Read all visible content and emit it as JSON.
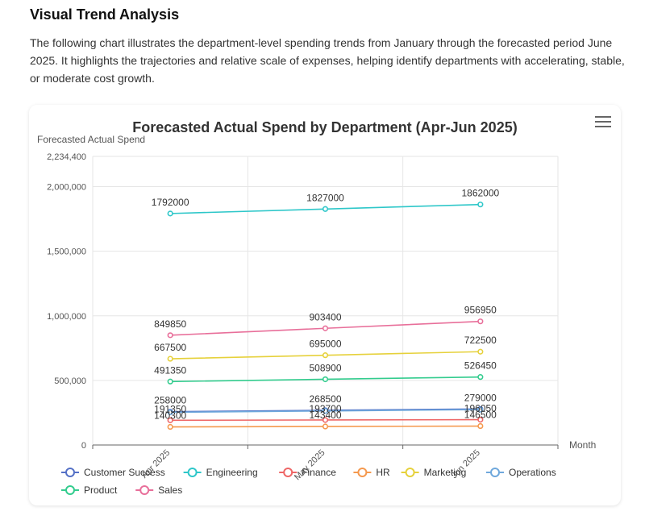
{
  "section": {
    "title": "Visual Trend Analysis",
    "description": "The following chart illustrates the department-level spending trends from January through the forecasted period June 2025. It highlights the trajectories and relative scale of expenses, helping identify departments with accelerating, stable, or moderate cost growth."
  },
  "chart_data": {
    "type": "line",
    "title": "Forecasted Actual Spend by Department (Apr-Jun 2025)",
    "xlabel": "Month",
    "ylabel": "Forecasted Actual Spend",
    "categories": [
      "Apr 2025",
      "May 2025",
      "Jun 2025"
    ],
    "ylim": [
      0,
      2234400
    ],
    "yticks": [
      0,
      500000,
      1000000,
      1500000,
      2000000,
      2234400
    ],
    "ytick_labels": [
      "0",
      "500,000",
      "1,000,000",
      "1,500,000",
      "2,000,000",
      "2,234,400"
    ],
    "grid": true,
    "legend_position": "bottom",
    "series": [
      {
        "name": "Customer Success",
        "color": "#5470c6",
        "values": [
          258000,
          268500,
          279000
        ],
        "labels": [
          "258000",
          "268500",
          "279000"
        ]
      },
      {
        "name": "Engineering",
        "color": "#2ec7c9",
        "values": [
          1792000,
          1827000,
          1862000
        ],
        "labels": [
          "1792000",
          "1827000",
          "1862000"
        ]
      },
      {
        "name": "Finance",
        "color": "#ee6666",
        "values": [
          191350,
          193700,
          196050
        ],
        "labels": [
          "191350",
          "193700",
          "196050"
        ]
      },
      {
        "name": "HR",
        "color": "#f5994e",
        "values": [
          140300,
          143400,
          146500
        ],
        "labels": [
          "140300",
          "143400",
          "146500"
        ]
      },
      {
        "name": "Marketing",
        "color": "#e6d13b",
        "values": [
          667500,
          695000,
          722500
        ],
        "labels": [
          "667500",
          "695000",
          "722500"
        ]
      },
      {
        "name": "Operations",
        "color": "#6fa8dc",
        "values": [
          253000,
          263500,
          274000
        ],
        "labels": [
          "",
          "",
          ""
        ]
      },
      {
        "name": "Product",
        "color": "#33cc8e",
        "values": [
          491350,
          508900,
          526450
        ],
        "labels": [
          "491350",
          "508900",
          "526450"
        ]
      },
      {
        "name": "Sales",
        "color": "#e86f9a",
        "values": [
          849850,
          903400,
          956950
        ],
        "labels": [
          "849850",
          "903400",
          "956950"
        ]
      }
    ]
  }
}
